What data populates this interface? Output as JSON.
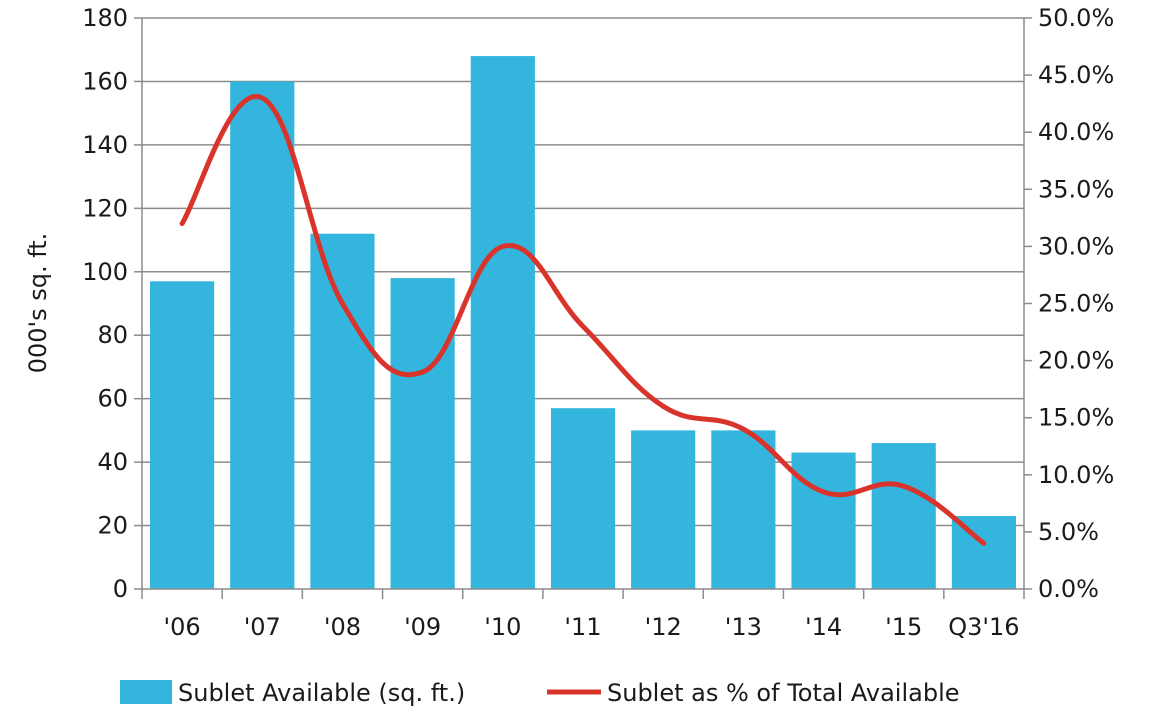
{
  "chart_data": {
    "type": "bar",
    "categories": [
      "'06",
      "'07",
      "'08",
      "'09",
      "'10",
      "'11",
      "'12",
      "'13",
      "'14",
      "'15",
      "Q3'16"
    ],
    "series": [
      {
        "name": "Sublet Available (sq. ft.)",
        "type": "bar",
        "axis": "left",
        "color": "#33b5dd",
        "values": [
          97,
          160,
          112,
          98,
          168,
          57,
          50,
          50,
          43,
          46,
          23
        ]
      },
      {
        "name": "Sublet as % of Total Available",
        "type": "line",
        "axis": "right",
        "color": "#d9342b",
        "values": [
          0.32,
          0.43,
          0.25,
          0.19,
          0.3,
          0.23,
          0.16,
          0.14,
          0.085,
          0.09,
          0.04
        ]
      }
    ],
    "ylabel": "000's sq. ft.",
    "y_left": {
      "min": 0,
      "max": 180,
      "step": 20,
      "ticks": [
        "0",
        "20",
        "40",
        "60",
        "80",
        "100",
        "120",
        "140",
        "160",
        "180"
      ]
    },
    "y_right": {
      "min": 0,
      "max": 0.5,
      "step": 0.05,
      "ticks": [
        "0.0%",
        "5.0%",
        "10.0%",
        "15.0%",
        "20.0%",
        "25.0%",
        "30.0%",
        "35.0%",
        "40.0%",
        "45.0%",
        "50.0%"
      ]
    },
    "grid": true,
    "legend": "bottom"
  }
}
